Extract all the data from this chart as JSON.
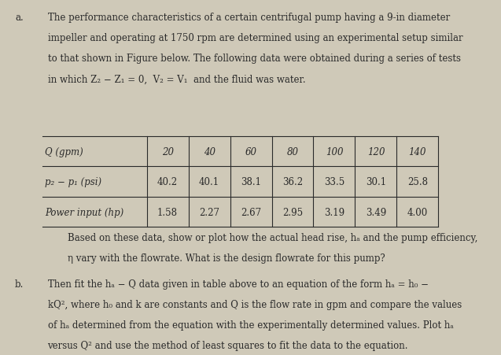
{
  "bg_color": "#cfc9b8",
  "text_color": "#2a2a2a",
  "fig_width": 6.37,
  "fig_height": 4.52,
  "part_a_label": "a.",
  "part_a_text_lines": [
    "The performance characteristics of a certain centrifugal pump having a 9-in diameter",
    "impeller and operating at 1750 rpm are determined using an experimental setup similar",
    "to that shown in Figure below. The following data were obtained during a series of tests",
    "in which Z₂ − Z₁ = 0,  V₂ = V₁  and the fluid was water."
  ],
  "table_headers": [
    "Q (gpm)",
    "20",
    "40",
    "60",
    "80",
    "100",
    "120",
    "140"
  ],
  "table_row1_label": "p₂ − p₁ (psi)",
  "table_row1_values": [
    "40.2",
    "40.1",
    "38.1",
    "36.2",
    "33.5",
    "30.1",
    "25.8"
  ],
  "table_row2_label": "Power input (hp)",
  "table_row2_values": [
    "1.58",
    "2.27",
    "2.67",
    "2.95",
    "3.19",
    "3.49",
    "4.00"
  ],
  "mid_text_lines": [
    "Based on these data, show or plot how the actual head rise, hₐ and the pump efficiency,",
    "η vary with the flowrate. What is the design flowrate for this pump?"
  ],
  "part_b_label": "b.",
  "part_b_text_lines": [
    "Then fit the hₐ − Q data given in table above to an equation of the form hₐ = h₀ −",
    "kQ², where h₀ and k are constants and Q is the flow rate in gpm and compare the values",
    "of hₐ determined from the equation with the experimentally determined values. Plot hₐ",
    "versus Q² and use the method of least squares to fit the data to the equation."
  ]
}
